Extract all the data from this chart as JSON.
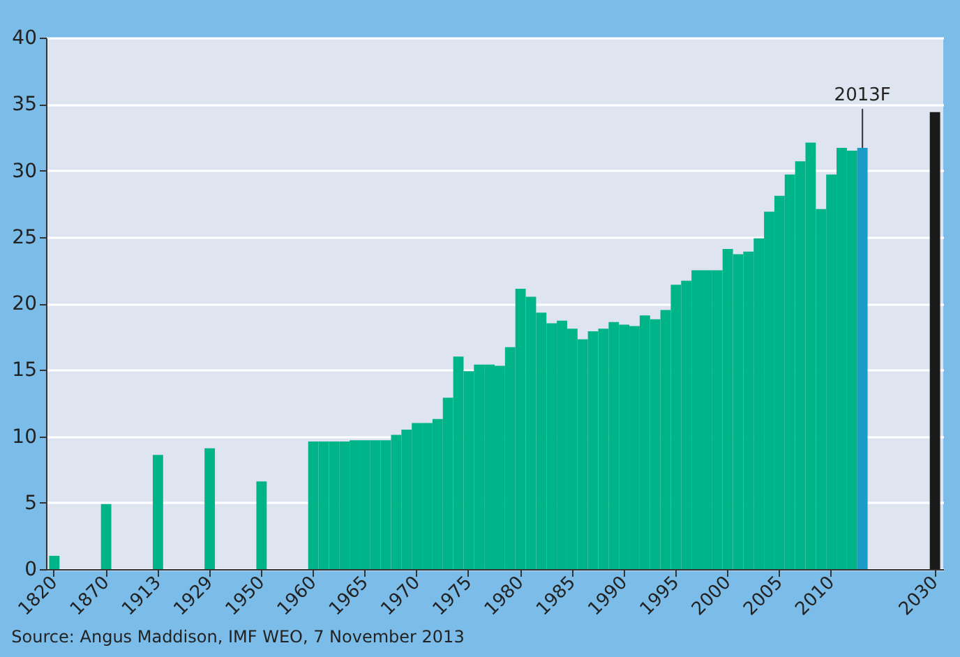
{
  "chart_data": {
    "type": "bar",
    "categories": [
      "1820",
      null,
      null,
      null,
      null,
      "1870",
      null,
      null,
      null,
      null,
      "1913",
      null,
      null,
      null,
      null,
      "1929",
      null,
      null,
      null,
      null,
      "1950",
      null,
      null,
      null,
      null,
      "1960",
      null,
      null,
      null,
      null,
      "1965",
      null,
      null,
      null,
      null,
      "1970",
      null,
      null,
      null,
      null,
      "1975",
      null,
      null,
      null,
      null,
      "1980",
      null,
      null,
      null,
      null,
      "1985",
      null,
      null,
      null,
      null,
      "1990",
      null,
      null,
      null,
      null,
      "1995",
      null,
      null,
      null,
      null,
      "2000",
      null,
      null,
      null,
      null,
      "2005",
      null,
      null,
      null,
      null,
      "2010",
      null,
      null,
      null,
      null,
      null,
      null,
      null,
      null,
      null,
      "2030"
    ],
    "values": [
      1.0,
      null,
      null,
      null,
      null,
      4.9,
      null,
      null,
      null,
      null,
      8.6,
      null,
      null,
      null,
      null,
      9.1,
      null,
      null,
      null,
      null,
      6.6,
      null,
      null,
      null,
      null,
      9.6,
      9.6,
      9.6,
      9.6,
      9.7,
      9.7,
      9.7,
      9.7,
      10.1,
      10.5,
      11.0,
      11.0,
      11.3,
      12.9,
      16.0,
      14.9,
      15.4,
      15.4,
      15.3,
      16.7,
      21.1,
      20.5,
      19.3,
      18.5,
      18.7,
      18.1,
      17.3,
      17.9,
      18.1,
      18.6,
      18.4,
      18.3,
      19.1,
      18.8,
      19.5,
      21.4,
      21.7,
      22.5,
      22.5,
      22.5,
      24.1,
      23.7,
      23.9,
      24.9,
      26.9,
      28.1,
      29.7,
      30.7,
      32.1,
      27.1,
      29.7,
      31.7,
      31.5,
      31.7,
      null,
      null,
      null,
      null,
      null,
      null,
      34.4
    ],
    "colors": [
      "#00b48a",
      "#00b48a",
      "#00b48a",
      "#00b48a",
      "#00b48a",
      "#00b48a",
      "#00b48a",
      "#00b48a",
      "#00b48a",
      "#00b48a",
      "#00b48a",
      "#00b48a",
      "#00b48a",
      "#00b48a",
      "#00b48a",
      "#00b48a",
      "#00b48a",
      "#00b48a",
      "#00b48a",
      "#00b48a",
      "#00b48a",
      "#00b48a",
      "#00b48a",
      "#00b48a",
      "#00b48a",
      "#00b48a",
      "#00b48a",
      "#00b48a",
      "#00b48a",
      "#00b48a",
      "#00b48a",
      "#00b48a",
      "#00b48a",
      "#00b48a",
      "#00b48a",
      "#00b48a",
      "#00b48a",
      "#00b48a",
      "#00b48a",
      "#00b48a",
      "#00b48a",
      "#00b48a",
      "#00b48a",
      "#00b48a",
      "#00b48a",
      "#00b48a",
      "#00b48a",
      "#00b48a",
      "#00b48a",
      "#00b48a",
      "#00b48a",
      "#00b48a",
      "#00b48a",
      "#00b48a",
      "#00b48a",
      "#00b48a",
      "#00b48a",
      "#00b48a",
      "#00b48a",
      "#00b48a",
      "#00b48a",
      "#00b48a",
      "#00b48a",
      "#00b48a",
      "#00b48a",
      "#00b48a",
      "#00b48a",
      "#00b48a",
      "#00b48a",
      "#00b48a",
      "#00b48a",
      "#00b48a",
      "#00b48a",
      "#00b48a",
      "#00b48a",
      "#00b48a",
      "#00b48a",
      "#00b48a",
      "#1a9bc8",
      "#1a9bc8",
      "#1a9bc8",
      "#1a9bc8",
      "#1a9bc8",
      "#1a9bc8",
      "#1a9bc8",
      "#1a1a1a"
    ],
    "ylim": [
      0,
      40
    ],
    "yticks": [
      0,
      5,
      10,
      15,
      20,
      25,
      30,
      35,
      40
    ],
    "grid": "y",
    "annotations": [
      {
        "text": "2013F",
        "y": 31.7
      },
      "Source: Angus Maddison, IMF WEO, 7 November 2013"
    ]
  }
}
